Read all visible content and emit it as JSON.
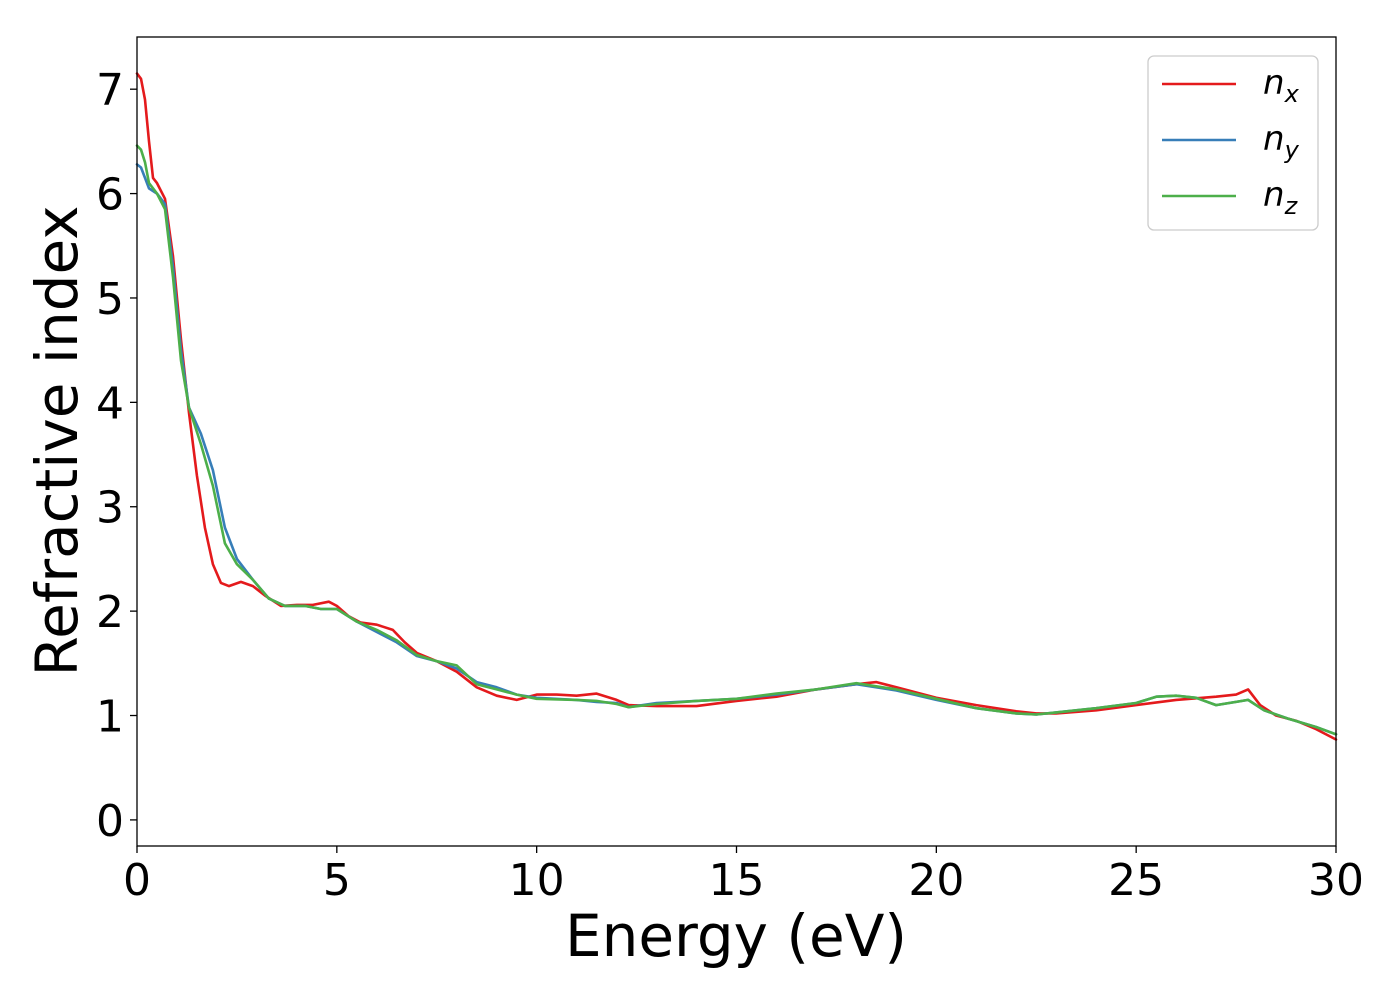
{
  "chart_data": {
    "type": "line",
    "title": "",
    "xlabel": "Energy (eV)",
    "ylabel": "Refractive index",
    "xlim": [
      0,
      30
    ],
    "ylim": [
      -0.25,
      7.5
    ],
    "xticks": [
      0,
      5,
      10,
      15,
      20,
      25,
      30
    ],
    "xtick_labels": [
      "0",
      "5",
      "10",
      "15",
      "20",
      "25",
      "30"
    ],
    "yticks": [
      0,
      1,
      2,
      3,
      4,
      5,
      6,
      7
    ],
    "ytick_labels": [
      "0",
      "1",
      "2",
      "3",
      "4",
      "5",
      "6",
      "7"
    ],
    "grid": false,
    "legend": {
      "placement": "top-right",
      "entries": [
        {
          "base": "n",
          "sub": "x",
          "color": "#e41a1c"
        },
        {
          "base": "n",
          "sub": "y",
          "color": "#377eb8"
        },
        {
          "base": "n",
          "sub": "z",
          "color": "#4daf4a"
        }
      ]
    },
    "series": [
      {
        "name": "n_x",
        "color": "#e41a1c",
        "points": [
          [
            0,
            7.15
          ],
          [
            0.1,
            7.1
          ],
          [
            0.2,
            6.9
          ],
          [
            0.3,
            6.5
          ],
          [
            0.4,
            6.15
          ],
          [
            0.5,
            6.1
          ],
          [
            0.7,
            5.95
          ],
          [
            0.9,
            5.4
          ],
          [
            1.1,
            4.6
          ],
          [
            1.3,
            3.9
          ],
          [
            1.5,
            3.3
          ],
          [
            1.7,
            2.8
          ],
          [
            1.9,
            2.45
          ],
          [
            2.1,
            2.27
          ],
          [
            2.3,
            2.24
          ],
          [
            2.6,
            2.28
          ],
          [
            2.9,
            2.24
          ],
          [
            3.2,
            2.15
          ],
          [
            3.6,
            2.05
          ],
          [
            4.0,
            2.06
          ],
          [
            4.4,
            2.06
          ],
          [
            4.8,
            2.09
          ],
          [
            5.0,
            2.05
          ],
          [
            5.3,
            1.95
          ],
          [
            5.6,
            1.89
          ],
          [
            6.0,
            1.87
          ],
          [
            6.4,
            1.82
          ],
          [
            6.7,
            1.7
          ],
          [
            7.0,
            1.6
          ],
          [
            7.5,
            1.52
          ],
          [
            8.0,
            1.42
          ],
          [
            8.5,
            1.27
          ],
          [
            9.0,
            1.19
          ],
          [
            9.5,
            1.15
          ],
          [
            10.0,
            1.2
          ],
          [
            10.5,
            1.2
          ],
          [
            11.0,
            1.19
          ],
          [
            11.5,
            1.21
          ],
          [
            12.0,
            1.15
          ],
          [
            12.3,
            1.1
          ],
          [
            13.0,
            1.09
          ],
          [
            14.0,
            1.09
          ],
          [
            15.0,
            1.14
          ],
          [
            16.0,
            1.18
          ],
          [
            17.0,
            1.25
          ],
          [
            18.0,
            1.3
          ],
          [
            18.5,
            1.32
          ],
          [
            19.0,
            1.27
          ],
          [
            20.0,
            1.17
          ],
          [
            21.0,
            1.1
          ],
          [
            22.0,
            1.04
          ],
          [
            22.5,
            1.02
          ],
          [
            23.0,
            1.02
          ],
          [
            24.0,
            1.05
          ],
          [
            25.0,
            1.1
          ],
          [
            26.0,
            1.15
          ],
          [
            27.0,
            1.18
          ],
          [
            27.5,
            1.2
          ],
          [
            27.8,
            1.25
          ],
          [
            28.1,
            1.1
          ],
          [
            28.5,
            1.0
          ],
          [
            29.0,
            0.95
          ],
          [
            29.5,
            0.87
          ],
          [
            30.0,
            0.77
          ]
        ]
      },
      {
        "name": "n_y",
        "color": "#377eb8",
        "points": [
          [
            0,
            6.28
          ],
          [
            0.1,
            6.25
          ],
          [
            0.2,
            6.15
          ],
          [
            0.3,
            6.05
          ],
          [
            0.5,
            6.0
          ],
          [
            0.7,
            5.9
          ],
          [
            0.9,
            5.3
          ],
          [
            1.1,
            4.5
          ],
          [
            1.3,
            3.95
          ],
          [
            1.6,
            3.7
          ],
          [
            1.9,
            3.35
          ],
          [
            2.2,
            2.8
          ],
          [
            2.5,
            2.5
          ],
          [
            2.9,
            2.3
          ],
          [
            3.3,
            2.12
          ],
          [
            3.7,
            2.05
          ],
          [
            4.2,
            2.05
          ],
          [
            4.6,
            2.02
          ],
          [
            5.0,
            2.02
          ],
          [
            5.5,
            1.9
          ],
          [
            6.0,
            1.8
          ],
          [
            6.5,
            1.7
          ],
          [
            7.0,
            1.57
          ],
          [
            7.5,
            1.52
          ],
          [
            8.0,
            1.45
          ],
          [
            8.5,
            1.32
          ],
          [
            9.0,
            1.27
          ],
          [
            9.5,
            1.2
          ],
          [
            10.0,
            1.17
          ],
          [
            11.0,
            1.15
          ],
          [
            11.5,
            1.13
          ],
          [
            12.0,
            1.12
          ],
          [
            12.3,
            1.08
          ],
          [
            13.0,
            1.12
          ],
          [
            14.0,
            1.14
          ],
          [
            15.0,
            1.16
          ],
          [
            16.0,
            1.2
          ],
          [
            17.0,
            1.25
          ],
          [
            18.0,
            1.3
          ],
          [
            19.0,
            1.24
          ],
          [
            20.0,
            1.15
          ],
          [
            21.0,
            1.07
          ],
          [
            22.0,
            1.02
          ],
          [
            22.5,
            1.01
          ],
          [
            23.0,
            1.03
          ],
          [
            24.0,
            1.07
          ],
          [
            25.0,
            1.12
          ],
          [
            25.5,
            1.18
          ],
          [
            26.0,
            1.19
          ],
          [
            26.5,
            1.17
          ],
          [
            27.0,
            1.1
          ],
          [
            27.5,
            1.13
          ],
          [
            27.8,
            1.15
          ],
          [
            28.2,
            1.05
          ],
          [
            28.8,
            0.97
          ],
          [
            29.5,
            0.89
          ],
          [
            30.0,
            0.82
          ]
        ]
      },
      {
        "name": "n_z",
        "color": "#4daf4a",
        "points": [
          [
            0,
            6.46
          ],
          [
            0.1,
            6.42
          ],
          [
            0.2,
            6.3
          ],
          [
            0.3,
            6.1
          ],
          [
            0.5,
            6.0
          ],
          [
            0.7,
            5.85
          ],
          [
            0.9,
            5.2
          ],
          [
            1.1,
            4.4
          ],
          [
            1.3,
            3.95
          ],
          [
            1.6,
            3.6
          ],
          [
            1.9,
            3.2
          ],
          [
            2.2,
            2.65
          ],
          [
            2.5,
            2.45
          ],
          [
            2.9,
            2.3
          ],
          [
            3.3,
            2.12
          ],
          [
            3.7,
            2.05
          ],
          [
            4.2,
            2.05
          ],
          [
            4.6,
            2.02
          ],
          [
            5.0,
            2.02
          ],
          [
            5.5,
            1.9
          ],
          [
            6.0,
            1.82
          ],
          [
            6.5,
            1.72
          ],
          [
            7.0,
            1.58
          ],
          [
            7.5,
            1.52
          ],
          [
            8.0,
            1.48
          ],
          [
            8.5,
            1.3
          ],
          [
            9.0,
            1.25
          ],
          [
            9.5,
            1.2
          ],
          [
            10.0,
            1.16
          ],
          [
            11.0,
            1.15
          ],
          [
            11.5,
            1.14
          ],
          [
            12.0,
            1.11
          ],
          [
            12.3,
            1.08
          ],
          [
            13.0,
            1.11
          ],
          [
            14.0,
            1.14
          ],
          [
            15.0,
            1.16
          ],
          [
            16.0,
            1.21
          ],
          [
            17.0,
            1.25
          ],
          [
            18.0,
            1.31
          ],
          [
            19.0,
            1.25
          ],
          [
            20.0,
            1.16
          ],
          [
            21.0,
            1.07
          ],
          [
            22.0,
            1.02
          ],
          [
            22.5,
            1.01
          ],
          [
            23.0,
            1.03
          ],
          [
            24.0,
            1.07
          ],
          [
            25.0,
            1.12
          ],
          [
            25.5,
            1.18
          ],
          [
            26.0,
            1.19
          ],
          [
            26.5,
            1.17
          ],
          [
            27.0,
            1.1
          ],
          [
            27.5,
            1.13
          ],
          [
            27.8,
            1.15
          ],
          [
            28.2,
            1.05
          ],
          [
            28.8,
            0.97
          ],
          [
            29.5,
            0.89
          ],
          [
            30.0,
            0.82
          ]
        ]
      }
    ]
  }
}
